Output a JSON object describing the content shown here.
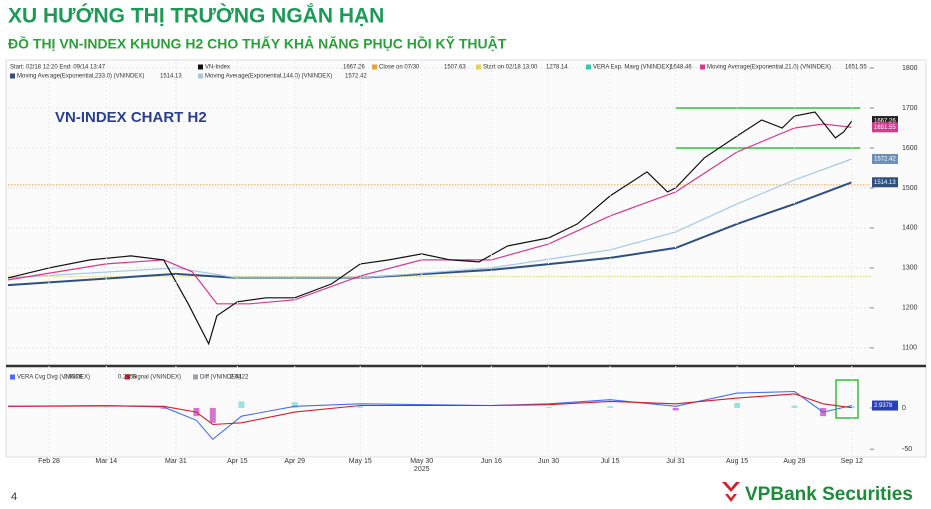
{
  "header": {
    "title": "XU HƯỚNG THỊ TRƯỜNG NGẮN HẠN",
    "subtitle": "ĐỒ THỊ VN-INDEX KHUNG H2 CHO THẤY KHẢ NĂNG PHỤC HỒI KỸ THUẬT"
  },
  "footer": {
    "page": "4",
    "brand": "VPBank Securities"
  },
  "chart_data": [
    {
      "type": "line",
      "label": "VN-INDEX CHART H2",
      "header_text": "Start: 02/18 12:20 End: 09/14 13:47",
      "xlim": [
        "2025-02-18",
        "2025-09-14"
      ],
      "ylim": [
        1057,
        1815
      ],
      "yticks": [
        1100,
        1200,
        1300,
        1400,
        1500,
        1600,
        1700,
        1800
      ],
      "grid": true,
      "series": [
        {
          "name": "VN-Index",
          "color": "#111111",
          "last_value": 1667.26,
          "x": [
            "2025-02-18",
            "2025-02-28",
            "2025-03-10",
            "2025-03-20",
            "2025-03-28",
            "2025-04-03",
            "2025-04-08",
            "2025-04-10",
            "2025-04-15",
            "2025-04-22",
            "2025-04-29",
            "2025-05-08",
            "2025-05-15",
            "2025-05-22",
            "2025-05-30",
            "2025-06-06",
            "2025-06-13",
            "2025-06-20",
            "2025-06-30",
            "2025-07-07",
            "2025-07-15",
            "2025-07-24",
            "2025-07-29",
            "2025-07-31",
            "2025-08-07",
            "2025-08-15",
            "2025-08-21",
            "2025-08-26",
            "2025-08-29",
            "2025-09-03",
            "2025-09-08",
            "2025-09-10",
            "2025-09-12"
          ],
          "values": [
            1275,
            1300,
            1320,
            1330,
            1320,
            1210,
            1110,
            1180,
            1215,
            1225,
            1225,
            1260,
            1310,
            1320,
            1335,
            1320,
            1315,
            1355,
            1375,
            1410,
            1480,
            1540,
            1490,
            1500,
            1575,
            1630,
            1670,
            1650,
            1680,
            1690,
            1625,
            1640,
            1667.26
          ]
        },
        {
          "name": "Moving Average(Exponential,21.0) (VNINDEX)",
          "color": "#d6398f",
          "last_value": 1651.55,
          "x": [
            "2025-02-18",
            "2025-03-14",
            "2025-03-28",
            "2025-04-04",
            "2025-04-10",
            "2025-04-18",
            "2025-04-29",
            "2025-05-15",
            "2025-05-30",
            "2025-06-16",
            "2025-06-30",
            "2025-07-15",
            "2025-07-31",
            "2025-08-15",
            "2025-08-29",
            "2025-09-05",
            "2025-09-12"
          ],
          "values": [
            1270,
            1310,
            1320,
            1290,
            1210,
            1210,
            1220,
            1280,
            1320,
            1320,
            1360,
            1430,
            1490,
            1590,
            1650,
            1660,
            1651.55
          ]
        },
        {
          "name": "Moving Average(Exponential,144.0) (VNINDEX)",
          "color": "#a8c8e8",
          "last_value": 1572.42,
          "x": [
            "2025-02-18",
            "2025-03-31",
            "2025-04-15",
            "2025-05-15",
            "2025-06-16",
            "2025-07-15",
            "2025-07-31",
            "2025-08-15",
            "2025-08-29",
            "2025-09-12"
          ],
          "values": [
            1275,
            1300,
            1275,
            1275,
            1300,
            1345,
            1390,
            1460,
            1520,
            1572.42
          ]
        },
        {
          "name": "Moving Average(Exponential,233.0) (VNINDEX)",
          "color": "#2f4f7f",
          "last_value": 1514.13,
          "x": [
            "2025-02-18",
            "2025-03-31",
            "2025-04-15",
            "2025-05-15",
            "2025-06-16",
            "2025-07-15",
            "2025-07-31",
            "2025-08-15",
            "2025-08-29",
            "2025-09-12"
          ],
          "values": [
            1257,
            1285,
            1275,
            1275,
            1295,
            1325,
            1350,
            1410,
            1460,
            1514.13
          ]
        }
      ],
      "indicators": [
        {
          "name": "VERA Exp. Mavg (VNINDEX)",
          "color": "#3cc7b5",
          "last_value": 1648.46
        }
      ],
      "reference_lines": [
        {
          "name": "Close on 07/30",
          "color": "#e8a040",
          "value": 1507.63
        },
        {
          "name": "Start on 02/18 13:00",
          "color": "#e8d060",
          "value": 1278.14
        }
      ],
      "range_lines": {
        "color": "#2fbf3f",
        "x_start": "2025-07-31",
        "x_end": "2025-09-14",
        "values": [
          1600,
          1700
        ]
      }
    },
    {
      "type": "line",
      "xlim": [
        "2025-02-18",
        "2025-09-14"
      ],
      "ylim": [
        -57,
        46
      ],
      "yticks": [
        0,
        -50
      ],
      "xticks": [
        {
          "value": "2025-02-28",
          "label": "Feb 28"
        },
        {
          "value": "2025-03-14",
          "label": "Mar 14"
        },
        {
          "value": "2025-03-31",
          "label": "Mar 31"
        },
        {
          "value": "2025-04-15",
          "label": "Apr 15"
        },
        {
          "value": "2025-04-29",
          "label": "Apr 29"
        },
        {
          "value": "2025-05-15",
          "label": "May 15"
        },
        {
          "value": "2025-05-30",
          "label": "May 30"
        },
        {
          "value": "2025-06-16",
          "label": "Jun 16"
        },
        {
          "value": "2025-06-30",
          "label": "Jun 30"
        },
        {
          "value": "2025-07-15",
          "label": "Jul 15"
        },
        {
          "value": "2025-07-31",
          "label": "Jul 31"
        },
        {
          "value": "2025-08-15",
          "label": "Aug 15"
        },
        {
          "value": "2025-08-29",
          "label": "Aug 29"
        },
        {
          "value": "2025-09-12",
          "label": "Sep 12"
        }
      ],
      "year_label": "2025",
      "x": [
        "2025-02-18",
        "2025-03-14",
        "2025-03-28",
        "2025-04-05",
        "2025-04-09",
        "2025-04-16",
        "2025-04-29",
        "2025-05-15",
        "2025-06-16",
        "2025-06-30",
        "2025-07-15",
        "2025-07-31",
        "2025-08-15",
        "2025-08-29",
        "2025-09-05",
        "2025-09-12"
      ],
      "series": [
        {
          "name": "VERA Cvg Dvg (VNINDEX)",
          "color": "#4a6cf0",
          "last_value": 2.9378,
          "values": [
            2,
            3,
            1,
            -15,
            -38,
            -10,
            2,
            5,
            3,
            5,
            10,
            2,
            18,
            20,
            -5,
            2.9378
          ]
        },
        {
          "name": "Signal (VNINDEX)",
          "color": "#d0202a",
          "last_value": 0.2956,
          "values": [
            2,
            2.5,
            2,
            -5,
            -20,
            -18,
            -5,
            3,
            3,
            4,
            8,
            5,
            12,
            17,
            5,
            0.2956
          ]
        },
        {
          "name": "Diff (VNINDEX)",
          "color": "#9aa0a8",
          "type": "bar",
          "pos_color": "#7fe0d8",
          "neg_color": "#d050c8",
          "last_value": 2.6422,
          "values": [
            0,
            0.5,
            -1,
            -10,
            -18,
            8,
            7,
            2,
            0,
            1,
            2,
            -3,
            6,
            3,
            -10,
            2.6422
          ]
        }
      ]
    }
  ]
}
